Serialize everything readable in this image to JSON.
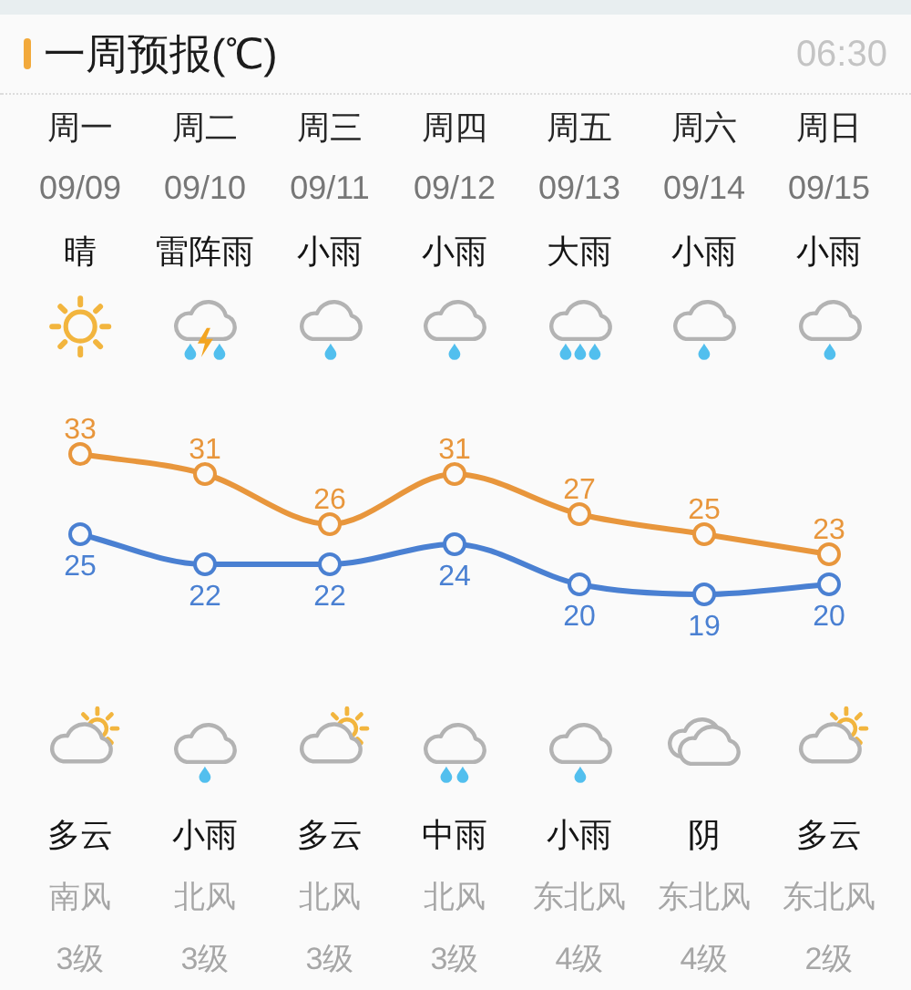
{
  "chart_data": {
    "type": "line",
    "title": "一周预报(℃)",
    "subtitle": "06:30",
    "categories": [
      "周一",
      "周二",
      "周三",
      "周四",
      "周五",
      "周六",
      "周日"
    ],
    "series": [
      {
        "color": "#e8963c",
        "values": [
          33,
          31,
          26,
          31,
          27,
          25,
          23
        ]
      },
      {
        "color": "#4a80d2",
        "values": [
          25,
          22,
          22,
          24,
          20,
          19,
          20
        ]
      }
    ],
    "data_labels": true,
    "marker": "circle",
    "line_style": "solid",
    "tick_labels": "x",
    "annotations": [
      "09/09",
      "09/10",
      "09/11",
      "09/12",
      "09/13",
      "09/14",
      "09/15",
      "晴",
      "雷阵雨",
      "小雨",
      "小雨",
      "大雨",
      "小雨",
      "小雨",
      "多云",
      "小雨",
      "多云",
      "中雨",
      "小雨",
      "阴",
      "多云",
      "南风",
      "北风",
      "北风",
      "北风",
      "东北风",
      "东北风",
      "东北风",
      "3级",
      "3级",
      "3级",
      "3级",
      "4级",
      "4级",
      "2级"
    ]
  }
}
